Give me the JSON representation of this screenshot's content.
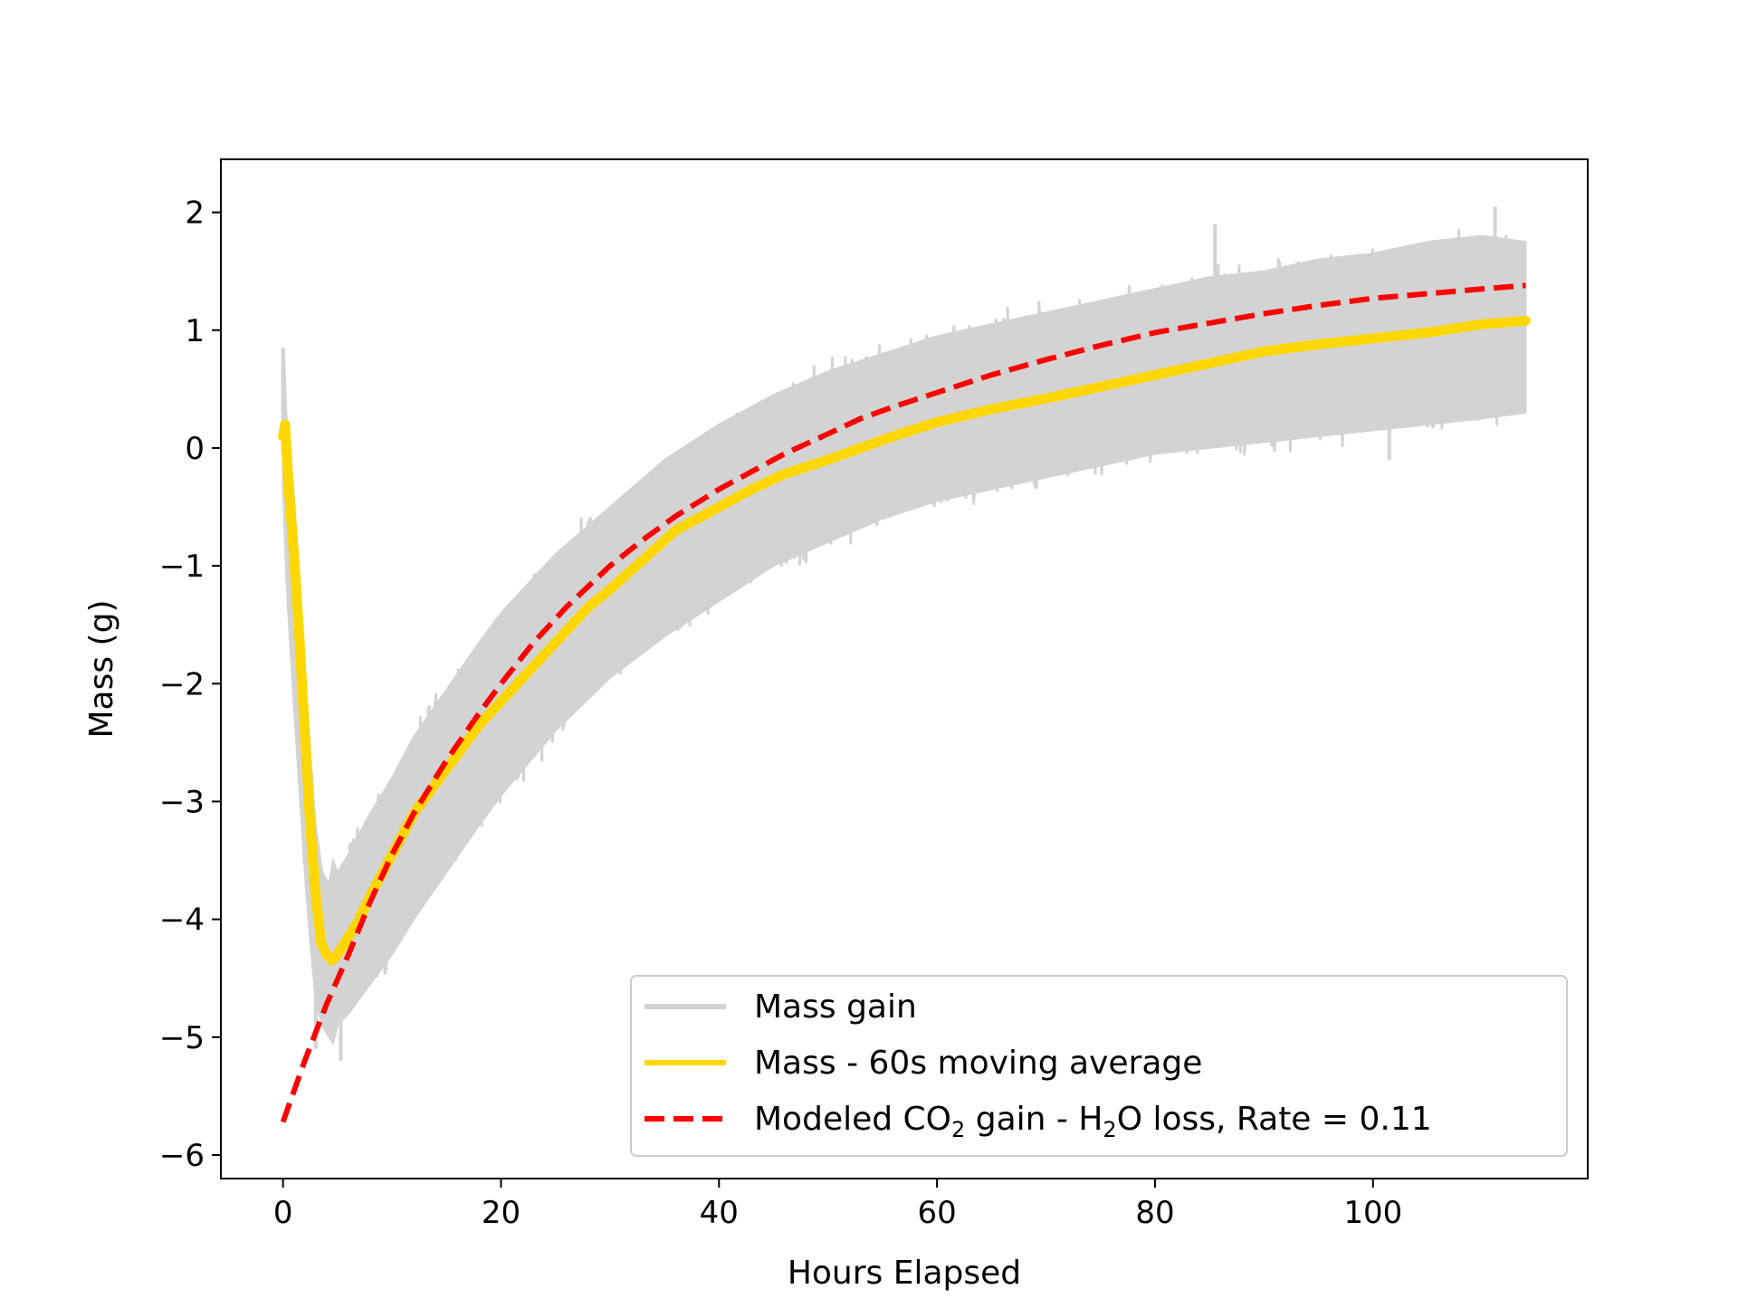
{
  "chart_data": {
    "type": "line",
    "title": "",
    "xlabel": "Hours Elapsed",
    "ylabel": "Mass (g)",
    "xlim": [
      -5.7,
      119.7
    ],
    "ylim": [
      -6.2,
      2.45
    ],
    "xticks": [
      0,
      20,
      40,
      60,
      80,
      100
    ],
    "yticks": [
      -6,
      -5,
      -4,
      -3,
      -2,
      -1,
      0,
      1,
      2
    ],
    "xtick_labels": [
      "0",
      "20",
      "40",
      "60",
      "80",
      "100"
    ],
    "ytick_labels": [
      "−6",
      "−5",
      "−4",
      "−3",
      "−2",
      "−1",
      "0",
      "1",
      "2"
    ],
    "grid": false,
    "legend_position": "lower right",
    "series": [
      {
        "name": "Mass gain",
        "color": "#d3d3d3",
        "style": "solid",
        "upper": {
          "x": [
            0,
            0.1,
            0.3,
            0.6,
            1.0,
            1.5,
            2.0,
            2.5,
            3.0,
            3.6,
            4.2,
            4.6,
            5.0,
            6,
            8,
            10,
            12,
            15,
            18,
            20,
            25,
            30,
            35,
            40,
            45,
            50,
            55,
            60,
            65,
            70,
            75,
            80,
            85,
            90,
            95,
            100,
            105,
            110,
            114
          ],
          "y": [
            0.2,
            0.85,
            0.3,
            0.0,
            -0.4,
            -1.1,
            -1.9,
            -2.6,
            -3.2,
            -3.6,
            -3.7,
            -3.5,
            -3.6,
            -3.45,
            -3.1,
            -2.8,
            -2.45,
            -2.05,
            -1.65,
            -1.4,
            -0.9,
            -0.5,
            -0.1,
            0.2,
            0.45,
            0.65,
            0.8,
            0.95,
            1.05,
            1.15,
            1.25,
            1.35,
            1.45,
            1.5,
            1.6,
            1.65,
            1.75,
            1.8,
            1.75
          ]
        },
        "lower": {
          "x": [
            0,
            0.1,
            0.3,
            0.6,
            1.0,
            1.5,
            2.0,
            2.5,
            3.0,
            3.6,
            4.2,
            4.6,
            5.0,
            6,
            8,
            10,
            12,
            15,
            18,
            20,
            25,
            30,
            35,
            40,
            45,
            50,
            55,
            60,
            65,
            70,
            75,
            80,
            85,
            90,
            95,
            100,
            105,
            110,
            114
          ],
          "y": [
            -0.3,
            -0.6,
            -1.1,
            -1.6,
            -2.2,
            -2.9,
            -3.6,
            -4.2,
            -4.7,
            -4.9,
            -5.0,
            -5.05,
            -4.9,
            -4.8,
            -4.55,
            -4.3,
            -4.0,
            -3.6,
            -3.2,
            -2.95,
            -2.4,
            -1.95,
            -1.6,
            -1.3,
            -1.0,
            -0.8,
            -0.6,
            -0.45,
            -0.35,
            -0.25,
            -0.15,
            -0.05,
            0.0,
            0.05,
            0.1,
            0.15,
            0.2,
            0.25,
            0.3
          ]
        },
        "spikes": [
          {
            "x": 0.0,
            "y": 0.85
          },
          {
            "x": 3.0,
            "y": -5.1
          },
          {
            "x": 5.3,
            "y": -5.2
          },
          {
            "x": 85.5,
            "y": 1.9
          },
          {
            "x": 111.2,
            "y": 2.05
          },
          {
            "x": 101.5,
            "y": -0.1
          }
        ]
      },
      {
        "name": "Mass - 60s moving average",
        "color": "#ffd700",
        "style": "solid",
        "x": [
          0,
          0.2,
          0.5,
          1.0,
          1.5,
          2.0,
          2.5,
          3.0,
          3.5,
          4.0,
          4.5,
          5.0,
          6,
          7,
          8,
          10,
          12,
          14,
          16,
          18,
          20,
          22,
          25,
          28,
          30,
          33,
          36,
          40,
          43,
          46,
          50,
          53,
          56,
          60,
          65,
          70,
          75,
          80,
          85,
          90,
          95,
          100,
          105,
          110,
          114
        ],
        "y": [
          0.1,
          0.2,
          -0.3,
          -0.9,
          -1.6,
          -2.4,
          -3.2,
          -3.8,
          -4.2,
          -4.3,
          -4.35,
          -4.3,
          -4.15,
          -4.0,
          -3.8,
          -3.45,
          -3.1,
          -2.85,
          -2.6,
          -2.35,
          -2.15,
          -1.95,
          -1.65,
          -1.35,
          -1.2,
          -0.95,
          -0.7,
          -0.5,
          -0.35,
          -0.22,
          -0.1,
          0.0,
          0.1,
          0.22,
          0.33,
          0.42,
          0.52,
          0.62,
          0.72,
          0.82,
          0.88,
          0.93,
          0.98,
          1.05,
          1.08
        ]
      },
      {
        "name": "Modeled CO₂ gain - H₂O loss, Rate = 0.11",
        "color": "#ff0000",
        "style": "dashed",
        "x": [
          0,
          2,
          4,
          6,
          8,
          10,
          12,
          15,
          18,
          20,
          23,
          26,
          30,
          33,
          36,
          40,
          43,
          46,
          50,
          53,
          56,
          60,
          65,
          70,
          75,
          80,
          85,
          90,
          95,
          100,
          105,
          110,
          114
        ],
        "y": [
          -5.72,
          -5.2,
          -4.72,
          -4.3,
          -3.85,
          -3.45,
          -3.1,
          -2.65,
          -2.25,
          -2.0,
          -1.65,
          -1.35,
          -1.0,
          -0.78,
          -0.58,
          -0.35,
          -0.2,
          -0.05,
          0.12,
          0.25,
          0.35,
          0.47,
          0.62,
          0.75,
          0.87,
          0.98,
          1.06,
          1.14,
          1.21,
          1.27,
          1.31,
          1.35,
          1.38
        ]
      }
    ],
    "legend": {
      "items": [
        {
          "key": "gain",
          "label": "Mass gain"
        },
        {
          "key": "avg",
          "label": "Mass - 60s moving average"
        },
        {
          "key": "model",
          "label_parts": [
            "Modeled CO",
            "2",
            " gain - H",
            "2",
            "O loss, Rate = 0.11"
          ]
        }
      ]
    }
  }
}
